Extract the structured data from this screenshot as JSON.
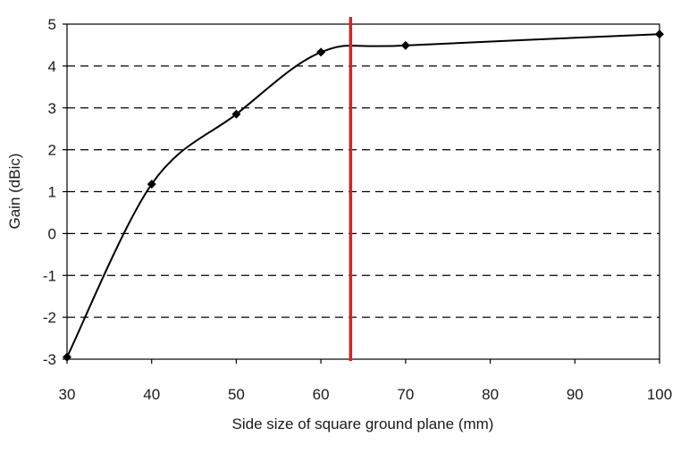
{
  "chart_data": {
    "type": "line",
    "title": "",
    "xlabel": "Side size of square ground plane (mm)",
    "ylabel": "Gain (dBic)",
    "xlim": [
      30,
      100
    ],
    "ylim": [
      -3,
      5
    ],
    "x_ticks": [
      30,
      40,
      50,
      60,
      70,
      80,
      90,
      100
    ],
    "y_ticks": [
      -3,
      -2,
      -1,
      0,
      1,
      2,
      3,
      4,
      5
    ],
    "grid": "horizontal dashed",
    "legend": "none",
    "series": [
      {
        "x": [
          30,
          40,
          50,
          60,
          70,
          100
        ],
        "y": [
          -2.95,
          1.18,
          2.85,
          4.33,
          4.49,
          4.76
        ],
        "color": "#000000",
        "marker": "diamond"
      }
    ],
    "reference_line": {
      "x": 63.5,
      "color": "#e02020"
    }
  }
}
